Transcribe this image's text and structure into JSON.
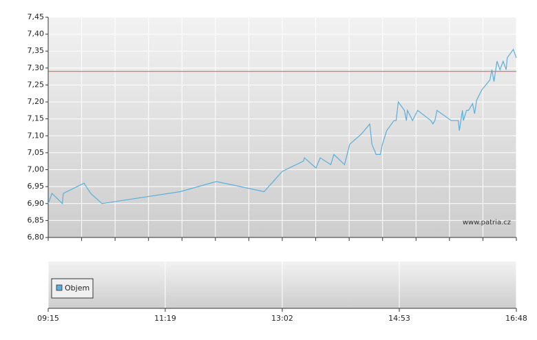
{
  "chart_data": {
    "type": "line",
    "watermark": "www.patria.cz",
    "x": [
      "09:15",
      "09:19",
      "09:30",
      "09:31",
      "09:53",
      "10:00",
      "10:12",
      "11:32",
      "12:04",
      "12:46",
      "12:54",
      "13:02",
      "13:22",
      "13:23",
      "13:34",
      "13:38",
      "13:48",
      "13:51",
      "14:01",
      "14:06",
      "14:17",
      "14:25",
      "14:27",
      "14:31",
      "14:35",
      "14:37",
      "14:41",
      "14:48",
      "14:50",
      "14:52",
      "14:58",
      "15:00",
      "15:01",
      "15:06",
      "15:11",
      "15:24",
      "15:26",
      "15:28",
      "15:30",
      "15:44",
      "15:51",
      "15:52",
      "15:55",
      "15:56",
      "15:59",
      "16:01",
      "16:05",
      "16:07",
      "16:09",
      "16:14",
      "16:22",
      "16:24",
      "16:26",
      "16:29",
      "16:32",
      "16:35",
      "16:38",
      "16:39",
      "16:45",
      "16:48"
    ],
    "series": [
      {
        "name": "Objem",
        "color": "#5aaedb",
        "values": [
          6.9,
          6.93,
          6.9,
          6.93,
          6.96,
          6.93,
          6.9,
          6.935,
          6.965,
          6.935,
          6.965,
          6.995,
          7.025,
          7.035,
          7.005,
          7.035,
          7.015,
          7.045,
          7.015,
          7.075,
          7.105,
          7.135,
          7.075,
          7.045,
          7.045,
          7.075,
          7.115,
          7.145,
          7.145,
          7.2,
          7.175,
          7.145,
          7.175,
          7.145,
          7.175,
          7.145,
          7.135,
          7.145,
          7.175,
          7.145,
          7.145,
          7.115,
          7.175,
          7.145,
          7.175,
          7.175,
          7.195,
          7.165,
          7.205,
          7.235,
          7.265,
          7.295,
          7.26,
          7.32,
          7.295,
          7.32,
          7.295,
          7.33,
          7.355,
          7.33
        ]
      }
    ],
    "reference_line": {
      "value": 7.29,
      "color": "#d9534f"
    },
    "ylim": [
      6.8,
      7.45
    ],
    "yticks": [
      {
        "value": 6.8,
        "label": "6,80"
      },
      {
        "value": 6.85,
        "label": "6,85"
      },
      {
        "value": 6.9,
        "label": "6,90"
      },
      {
        "value": 6.95,
        "label": "6,95"
      },
      {
        "value": 7.0,
        "label": "7,00"
      },
      {
        "value": 7.05,
        "label": "7,05"
      },
      {
        "value": 7.1,
        "label": "7,10"
      },
      {
        "value": 7.15,
        "label": "7,15"
      },
      {
        "value": 7.2,
        "label": "7,20"
      },
      {
        "value": 7.25,
        "label": "7,25"
      },
      {
        "value": 7.3,
        "label": "7,30"
      },
      {
        "value": 7.35,
        "label": "7,35"
      },
      {
        "value": 7.4,
        "label": "7,40"
      },
      {
        "value": 7.45,
        "label": "7,45"
      }
    ],
    "xticks": [
      "09:15",
      "11:19",
      "13:02",
      "14:53",
      "16:48"
    ],
    "grid": true
  }
}
